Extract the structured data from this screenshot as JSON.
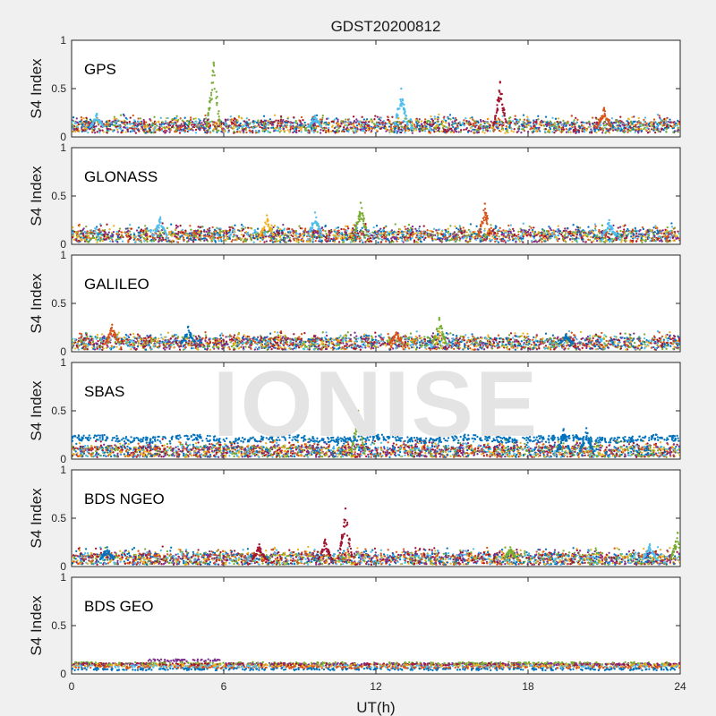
{
  "chart_data": {
    "type": "scatter",
    "title": "GDST20200812",
    "watermark": "IONISE",
    "xlabel": "UT(h)",
    "ylabel": "S4 Index",
    "xlim": [
      0,
      24
    ],
    "ylim": [
      0,
      1
    ],
    "xticks": [
      "0",
      "6",
      "12",
      "18",
      "24"
    ],
    "yticks": [
      "0",
      "0.5",
      "1"
    ],
    "grid": false,
    "series_colors": [
      "#0072BD",
      "#D95319",
      "#EDB120",
      "#7E2F8E",
      "#77AC30",
      "#4DBEEE",
      "#A2142F"
    ],
    "panels": [
      {
        "label": "GPS",
        "baseline": 0.1,
        "peaks": [
          [
            5.6,
            0.77,
            4
          ],
          [
            13.0,
            0.5,
            5
          ],
          [
            16.9,
            0.57,
            6
          ],
          [
            9.6,
            0.22,
            5
          ],
          [
            21.0,
            0.3,
            1
          ],
          [
            1.0,
            0.24,
            5
          ]
        ]
      },
      {
        "label": "GLONASS",
        "baseline": 0.08,
        "peaks": [
          [
            3.5,
            0.28,
            5
          ],
          [
            7.7,
            0.3,
            2
          ],
          [
            11.4,
            0.43,
            4
          ],
          [
            16.3,
            0.42,
            1
          ],
          [
            9.6,
            0.33,
            5
          ],
          [
            21.2,
            0.25,
            5
          ]
        ]
      },
      {
        "label": "GALILEO",
        "baseline": 0.08,
        "peaks": [
          [
            1.6,
            0.28,
            1
          ],
          [
            4.6,
            0.26,
            0
          ],
          [
            14.5,
            0.35,
            4
          ],
          [
            12.8,
            0.2,
            1
          ],
          [
            19.5,
            0.18,
            0
          ]
        ]
      },
      {
        "label": "SBAS",
        "baseline": 0.07,
        "upper_band": 0.21,
        "peaks": [
          [
            11.3,
            0.5,
            4
          ],
          [
            19.4,
            0.31,
            0
          ],
          [
            20.3,
            0.32,
            0
          ]
        ]
      },
      {
        "label": "BDS NGEO",
        "baseline": 0.07,
        "peaks": [
          [
            10.8,
            0.6,
            6
          ],
          [
            10.0,
            0.28,
            6
          ],
          [
            7.4,
            0.23,
            6
          ],
          [
            17.3,
            0.2,
            4
          ],
          [
            23.9,
            0.35,
            4
          ],
          [
            22.8,
            0.23,
            5
          ],
          [
            1.4,
            0.2,
            0
          ]
        ]
      },
      {
        "label": "BDS GEO",
        "baseline": 0.09,
        "flat": true,
        "peaks": []
      }
    ]
  }
}
